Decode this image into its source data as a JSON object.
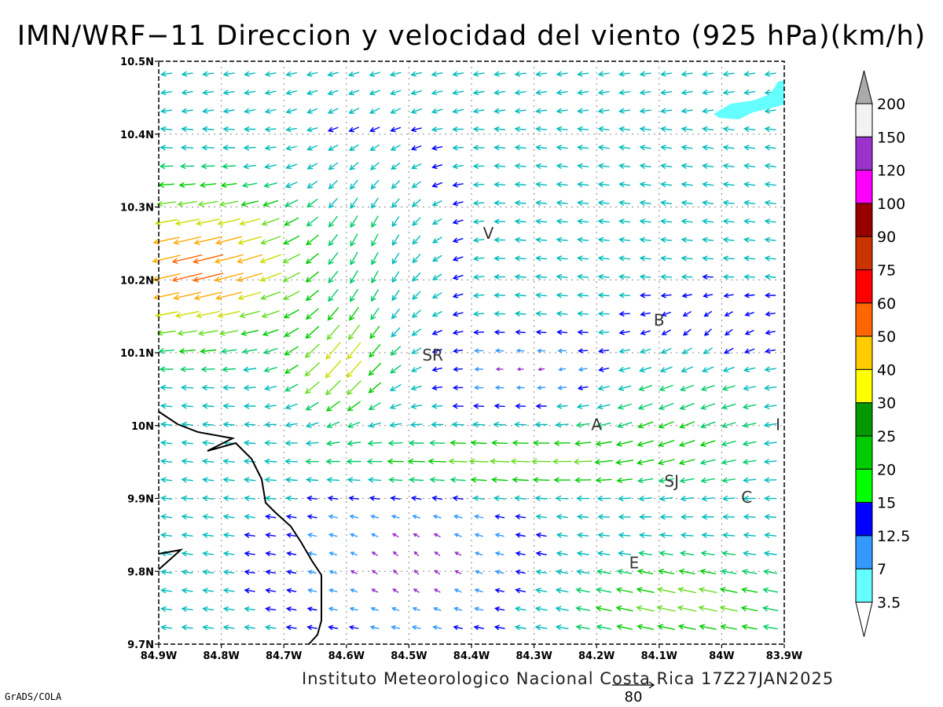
{
  "title": "IMN/WRF−11 Direccion y velocidad del viento (925 hPa)(km/h)",
  "footer": "Instituto Meteorologico Nacional Costa Rica 17Z27JAN2025",
  "credit": "GrADS/COLA",
  "reference_vector": "80",
  "map": {
    "lat_labels": [
      "10.5N",
      "10.4N",
      "10.3N",
      "10.2N",
      "10.1N",
      "10N",
      "9.9N",
      "9.8N",
      "9.7N"
    ],
    "lon_labels": [
      "84.9W",
      "84.8W",
      "84.7W",
      "84.6W",
      "84.5W",
      "84.4W",
      "84.3W",
      "84.2W",
      "84.1W",
      "84W",
      "83.9W"
    ],
    "lat_range": [
      9.7,
      10.5
    ],
    "lon_range": [
      -84.9,
      -83.9
    ],
    "grid": true,
    "places": [
      {
        "label": "V",
        "lon": -84.373,
        "lat": 10.262
      },
      {
        "label": "SR",
        "lon": -84.462,
        "lat": 10.095
      },
      {
        "label": "B",
        "lon": -84.1,
        "lat": 10.143
      },
      {
        "label": "A",
        "lon": -84.2,
        "lat": 10.0
      },
      {
        "label": "SJ",
        "lon": -84.08,
        "lat": 9.922
      },
      {
        "label": "I",
        "lon": -83.91,
        "lat": 10.0
      },
      {
        "label": "C",
        "lon": -83.96,
        "lat": 9.9
      },
      {
        "label": "E",
        "lon": -84.14,
        "lat": 9.81
      }
    ]
  },
  "colorbar": {
    "labels": [
      "200",
      "150",
      "120",
      "100",
      "90",
      "75",
      "60",
      "50",
      "40",
      "30",
      "25",
      "20",
      "15",
      "12.5",
      "7",
      "3.5"
    ],
    "colors": [
      "#f2f2f2",
      "#9933cc",
      "#ff00ff",
      "#990000",
      "#cc3300",
      "#ff0000",
      "#ff6600",
      "#ffcc00",
      "#ffff00",
      "#009900",
      "#00cc00",
      "#00ff00",
      "#0000ff",
      "#3399ff",
      "#66ffff"
    ],
    "top_triangle_color": "#aaaaaa",
    "bottom_triangle_color": "#ffffff"
  },
  "speed_colors": {
    "b3": "#9933cc",
    "b7": "#3399ff",
    "b12": "#0000ff",
    "b15": "#00bbbb",
    "b20": "#00cc66",
    "b25": "#00cc00",
    "b30": "#66dd22",
    "b40": "#ccdd00",
    "b50": "#ffaa00",
    "b60": "#ff6600",
    "b75": "#ff2222"
  }
}
